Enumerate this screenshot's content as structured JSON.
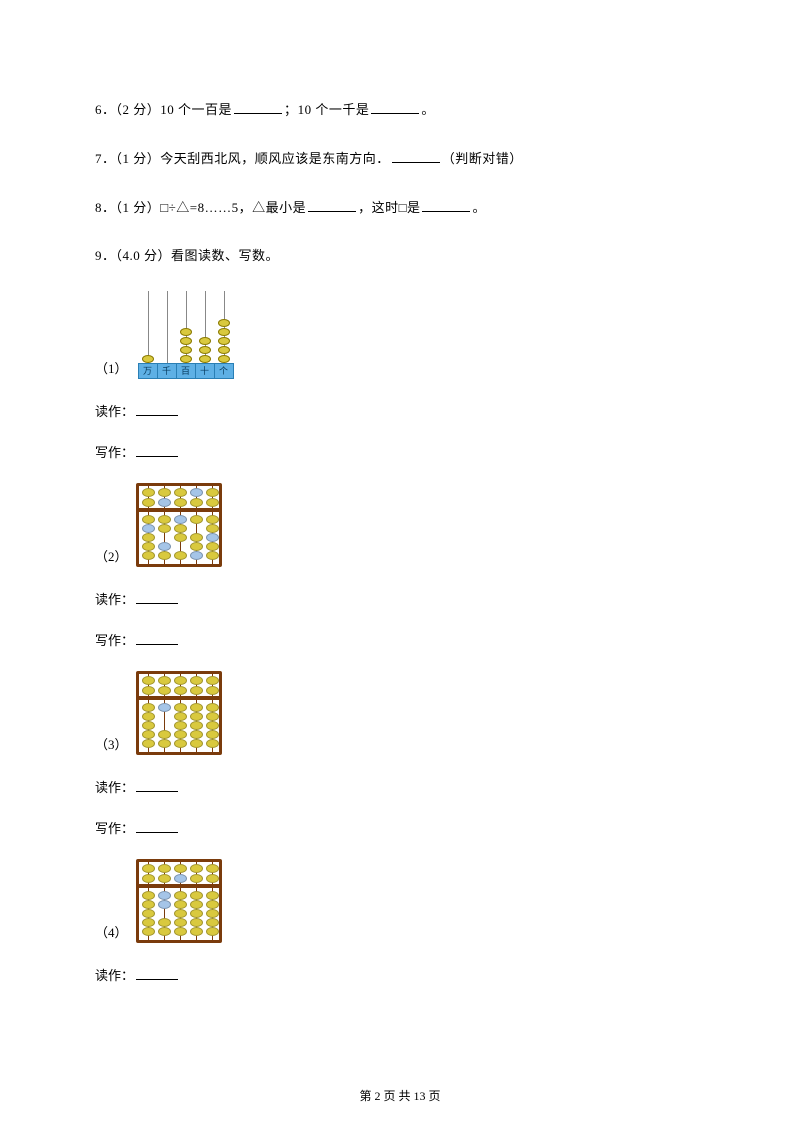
{
  "questions": {
    "q6": {
      "num": "6．",
      "points": "（2 分）",
      "part_a": "10 个一百是",
      "sep": "；",
      "part_b": "10 个一千是",
      "end": "。"
    },
    "q7": {
      "num": "7．",
      "points": "（1 分）",
      "text_a": "今天刮西北风，顺风应该是东南方向．",
      "text_b": "（判断对错）"
    },
    "q8": {
      "num": "8．",
      "points": "（1 分）",
      "text_a": "□÷△=8……5，△最小是",
      "text_b": "，这时□是",
      "end": "。"
    },
    "q9": {
      "num": "9．",
      "points": "（4.0 分）",
      "text": "看图读数、写数。"
    }
  },
  "sub_labels": {
    "s1": "（1）",
    "s2": "（2）",
    "s3": "（3）",
    "s4": "（4）"
  },
  "answer_labels": {
    "read": "读作：",
    "write": "写作："
  },
  "footer": {
    "prefix": "第 ",
    "page": "2",
    "mid": " 页 共 ",
    "total": "13",
    "suffix": " 页"
  },
  "frame1": {
    "labels": [
      "万",
      "千",
      "百",
      "十",
      "个"
    ],
    "rod_color": "#888888",
    "bead_color": "#d9c93e",
    "columns": [
      {
        "x": 12,
        "beads": 1
      },
      {
        "x": 31,
        "beads": 0
      },
      {
        "x": 50,
        "beads": 4
      },
      {
        "x": 69,
        "beads": 3
      },
      {
        "x": 88,
        "beads": 5
      }
    ]
  },
  "abacus_colors": {
    "gold": "#d9c93e",
    "blue": "#a5c5e8",
    "frame": "#7a3b0c"
  },
  "abacus2": {
    "rods_x": [
      12,
      28,
      44,
      60,
      76
    ],
    "upper": [
      {
        "rod": 0,
        "beads": [
          {
            "y": 2,
            "c": "gold"
          },
          {
            "y": 12,
            "c": "gold"
          }
        ]
      },
      {
        "rod": 1,
        "beads": [
          {
            "y": 2,
            "c": "gold"
          },
          {
            "y": 12,
            "c": "blue"
          }
        ]
      },
      {
        "rod": 2,
        "beads": [
          {
            "y": 2,
            "c": "gold"
          },
          {
            "y": 12,
            "c": "gold"
          }
        ]
      },
      {
        "rod": 3,
        "beads": [
          {
            "y": 2,
            "c": "blue"
          },
          {
            "y": 12,
            "c": "gold"
          }
        ]
      },
      {
        "rod": 4,
        "beads": [
          {
            "y": 2,
            "c": "gold"
          },
          {
            "y": 12,
            "c": "gold"
          }
        ]
      }
    ],
    "lower": [
      {
        "rod": 0,
        "beads": [
          {
            "y": 29,
            "c": "gold"
          },
          {
            "y": 38,
            "c": "blue"
          },
          {
            "y": 47,
            "c": "gold"
          },
          {
            "y": 56,
            "c": "gold"
          },
          {
            "y": 65,
            "c": "gold"
          }
        ]
      },
      {
        "rod": 1,
        "beads": [
          {
            "y": 29,
            "c": "gold"
          },
          {
            "y": 38,
            "c": "gold"
          },
          {
            "y": 56,
            "c": "blue"
          },
          {
            "y": 65,
            "c": "gold"
          }
        ]
      },
      {
        "rod": 2,
        "beads": [
          {
            "y": 29,
            "c": "blue"
          },
          {
            "y": 38,
            "c": "gold"
          },
          {
            "y": 47,
            "c": "gold"
          },
          {
            "y": 65,
            "c": "gold"
          }
        ]
      },
      {
        "rod": 3,
        "beads": [
          {
            "y": 29,
            "c": "gold"
          },
          {
            "y": 47,
            "c": "gold"
          },
          {
            "y": 56,
            "c": "gold"
          },
          {
            "y": 65,
            "c": "blue"
          }
        ]
      },
      {
        "rod": 4,
        "beads": [
          {
            "y": 29,
            "c": "gold"
          },
          {
            "y": 38,
            "c": "gold"
          },
          {
            "y": 47,
            "c": "blue"
          },
          {
            "y": 56,
            "c": "gold"
          },
          {
            "y": 65,
            "c": "gold"
          }
        ]
      }
    ]
  },
  "abacus3": {
    "rods_x": [
      12,
      28,
      44,
      60,
      76
    ],
    "upper": [
      {
        "rod": 0,
        "beads": [
          {
            "y": 2,
            "c": "gold"
          },
          {
            "y": 12,
            "c": "gold"
          }
        ]
      },
      {
        "rod": 1,
        "beads": [
          {
            "y": 2,
            "c": "gold"
          },
          {
            "y": 12,
            "c": "gold"
          }
        ]
      },
      {
        "rod": 2,
        "beads": [
          {
            "y": 2,
            "c": "gold"
          },
          {
            "y": 12,
            "c": "gold"
          }
        ]
      },
      {
        "rod": 3,
        "beads": [
          {
            "y": 2,
            "c": "gold"
          },
          {
            "y": 12,
            "c": "gold"
          }
        ]
      },
      {
        "rod": 4,
        "beads": [
          {
            "y": 2,
            "c": "gold"
          },
          {
            "y": 12,
            "c": "gold"
          }
        ]
      }
    ],
    "lower": [
      {
        "rod": 0,
        "beads": [
          {
            "y": 29,
            "c": "gold"
          },
          {
            "y": 38,
            "c": "gold"
          },
          {
            "y": 47,
            "c": "gold"
          },
          {
            "y": 56,
            "c": "gold"
          },
          {
            "y": 65,
            "c": "gold"
          }
        ]
      },
      {
        "rod": 1,
        "beads": [
          {
            "y": 29,
            "c": "blue"
          },
          {
            "y": 56,
            "c": "gold"
          },
          {
            "y": 65,
            "c": "gold"
          }
        ]
      },
      {
        "rod": 2,
        "beads": [
          {
            "y": 29,
            "c": "gold"
          },
          {
            "y": 38,
            "c": "gold"
          },
          {
            "y": 47,
            "c": "gold"
          },
          {
            "y": 56,
            "c": "gold"
          },
          {
            "y": 65,
            "c": "gold"
          }
        ]
      },
      {
        "rod": 3,
        "beads": [
          {
            "y": 29,
            "c": "gold"
          },
          {
            "y": 38,
            "c": "gold"
          },
          {
            "y": 47,
            "c": "gold"
          },
          {
            "y": 56,
            "c": "gold"
          },
          {
            "y": 65,
            "c": "gold"
          }
        ]
      },
      {
        "rod": 4,
        "beads": [
          {
            "y": 29,
            "c": "gold"
          },
          {
            "y": 38,
            "c": "gold"
          },
          {
            "y": 47,
            "c": "gold"
          },
          {
            "y": 56,
            "c": "gold"
          },
          {
            "y": 65,
            "c": "gold"
          }
        ]
      }
    ]
  },
  "abacus4": {
    "rods_x": [
      12,
      28,
      44,
      60,
      76
    ],
    "upper": [
      {
        "rod": 0,
        "beads": [
          {
            "y": 2,
            "c": "gold"
          },
          {
            "y": 12,
            "c": "gold"
          }
        ]
      },
      {
        "rod": 1,
        "beads": [
          {
            "y": 2,
            "c": "gold"
          },
          {
            "y": 12,
            "c": "gold"
          }
        ]
      },
      {
        "rod": 2,
        "beads": [
          {
            "y": 2,
            "c": "gold"
          },
          {
            "y": 12,
            "c": "blue"
          }
        ]
      },
      {
        "rod": 3,
        "beads": [
          {
            "y": 2,
            "c": "gold"
          },
          {
            "y": 12,
            "c": "gold"
          }
        ]
      },
      {
        "rod": 4,
        "beads": [
          {
            "y": 2,
            "c": "gold"
          },
          {
            "y": 12,
            "c": "gold"
          }
        ]
      }
    ],
    "lower": [
      {
        "rod": 0,
        "beads": [
          {
            "y": 29,
            "c": "gold"
          },
          {
            "y": 38,
            "c": "gold"
          },
          {
            "y": 47,
            "c": "gold"
          },
          {
            "y": 56,
            "c": "gold"
          },
          {
            "y": 65,
            "c": "gold"
          }
        ]
      },
      {
        "rod": 1,
        "beads": [
          {
            "y": 29,
            "c": "blue"
          },
          {
            "y": 38,
            "c": "blue"
          },
          {
            "y": 56,
            "c": "gold"
          },
          {
            "y": 65,
            "c": "gold"
          }
        ]
      },
      {
        "rod": 2,
        "beads": [
          {
            "y": 29,
            "c": "gold"
          },
          {
            "y": 38,
            "c": "gold"
          },
          {
            "y": 47,
            "c": "gold"
          },
          {
            "y": 56,
            "c": "gold"
          },
          {
            "y": 65,
            "c": "gold"
          }
        ]
      },
      {
        "rod": 3,
        "beads": [
          {
            "y": 29,
            "c": "gold"
          },
          {
            "y": 38,
            "c": "gold"
          },
          {
            "y": 47,
            "c": "gold"
          },
          {
            "y": 56,
            "c": "gold"
          },
          {
            "y": 65,
            "c": "gold"
          }
        ]
      },
      {
        "rod": 4,
        "beads": [
          {
            "y": 29,
            "c": "gold"
          },
          {
            "y": 38,
            "c": "gold"
          },
          {
            "y": 47,
            "c": "gold"
          },
          {
            "y": 56,
            "c": "gold"
          },
          {
            "y": 65,
            "c": "gold"
          }
        ]
      }
    ]
  }
}
